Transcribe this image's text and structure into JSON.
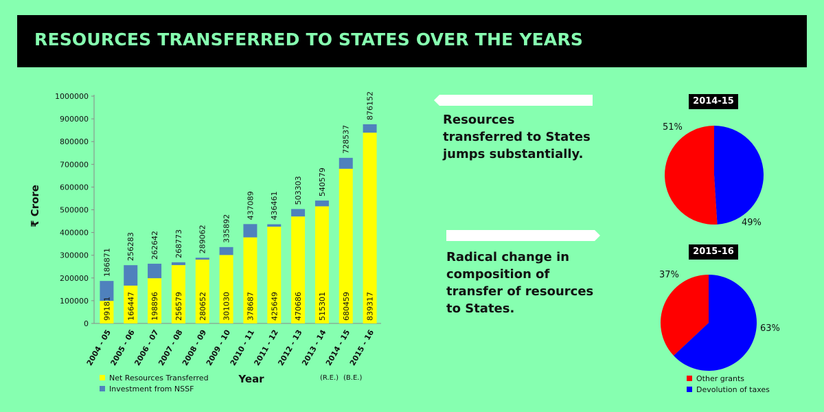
{
  "title": "RESOURCES TRANSFERRED TO STATES OVER THE YEARS",
  "colors": {
    "background": "#86ffb0",
    "net": "#ffff00",
    "nssf": "#4f81bd",
    "other_grants": "#ff0000",
    "devolution": "#0000ff"
  },
  "chart_data": [
    {
      "type": "bar",
      "stacked": true,
      "ylabel": "₹ Crore",
      "xlabel": "Year",
      "ylim": [
        0,
        1000000
      ],
      "yticks": [
        0,
        100000,
        200000,
        300000,
        400000,
        500000,
        600000,
        700000,
        800000,
        900000,
        1000000
      ],
      "categories": [
        "2004 - 05",
        "2005 - 06",
        "2006 - 07",
        "2007 - 08",
        "2008 - 09",
        "2009 - 10",
        "2010 - 11",
        "2011 - 12",
        "2012 - 13",
        "2013 - 14",
        "2014 - 15",
        "2015 - 16"
      ],
      "series": [
        {
          "name": "Net Resources Transferred",
          "values": [
            99181,
            166447,
            198896,
            256579,
            280652,
            301030,
            378687,
            425649,
            470686,
            515301,
            680459,
            839317
          ]
        },
        {
          "name": "Investment from NSSF",
          "values": [
            87690,
            89836,
            63746,
            12194,
            8410,
            34862,
            58402,
            10812,
            32617,
            25278,
            48078,
            36835
          ]
        }
      ],
      "totals": [
        186871,
        256283,
        262642,
        268773,
        289062,
        335892,
        437089,
        436461,
        503303,
        540579,
        728537,
        876152
      ],
      "x_annotations": [
        "(R.E.)",
        "(B.E.)"
      ],
      "legend": "bottom-left"
    },
    {
      "type": "pie",
      "title": "2014-15",
      "slices": [
        {
          "name": "Other grants",
          "value": 51
        },
        {
          "name": "Devolution of taxes",
          "value": 49
        }
      ],
      "labels": [
        "51%",
        "49%"
      ]
    },
    {
      "type": "pie",
      "title": "2015-16",
      "slices": [
        {
          "name": "Other grants",
          "value": 37
        },
        {
          "name": "Devolution of taxes",
          "value": 63
        }
      ],
      "labels": [
        "37%",
        "63%"
      ],
      "legend": "bottom"
    }
  ],
  "notes": {
    "note1": "Resources transferred to States jumps substantially.",
    "note2": "Radical change in composition of transfer of resources to States."
  }
}
